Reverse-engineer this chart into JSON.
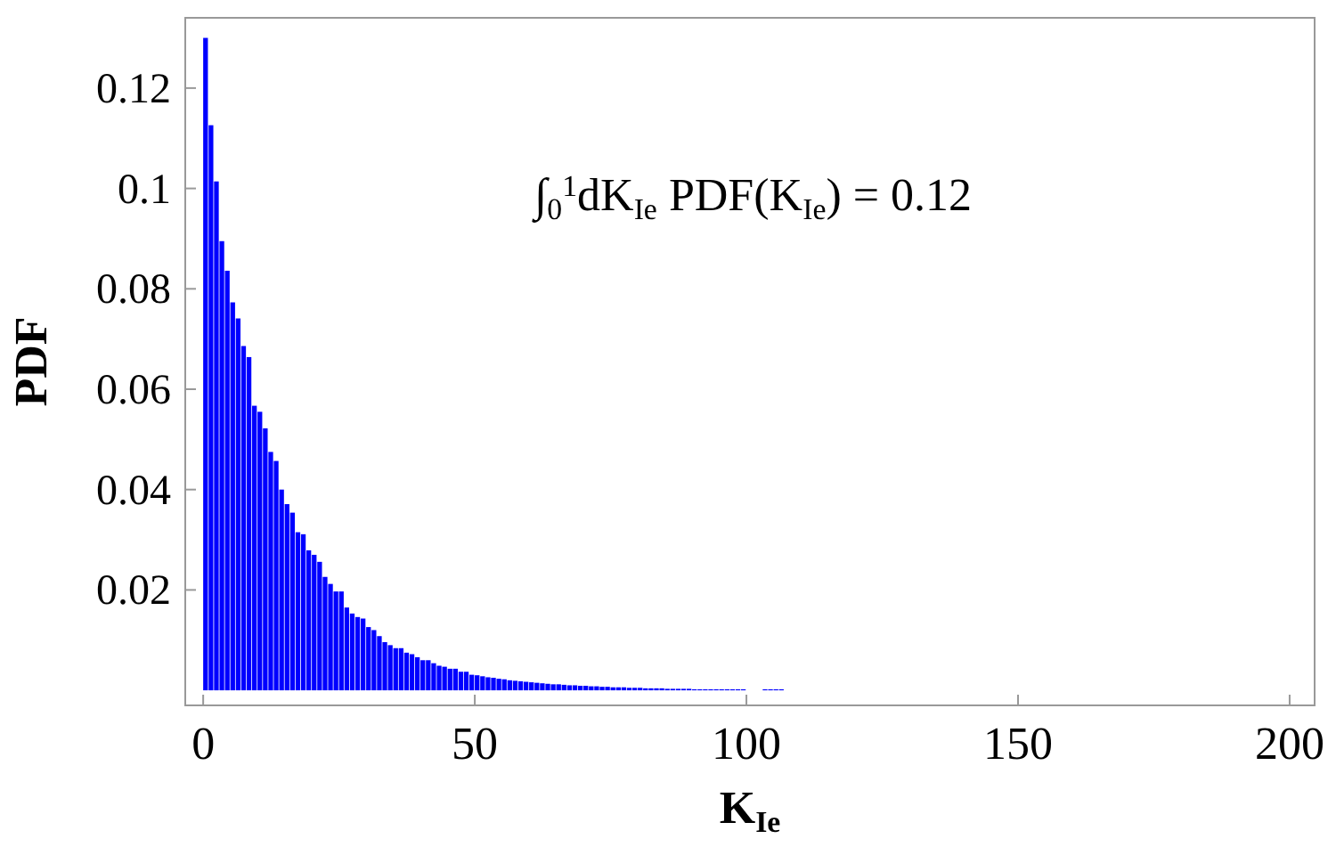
{
  "chart_data": {
    "type": "histogram",
    "xlabel": "K$_{Ie}$",
    "ylabel": "PDF",
    "color": "#0000ff",
    "bins": [
      0,
      1,
      2,
      3,
      4,
      5,
      6,
      7,
      8,
      9,
      10,
      11,
      12,
      13,
      14,
      15,
      16,
      17,
      18,
      19,
      20,
      21,
      22,
      23,
      24,
      25,
      26,
      27,
      28,
      29,
      30,
      31,
      32,
      33,
      34,
      35,
      36,
      37,
      38,
      39,
      40,
      41,
      42,
      43,
      44,
      45,
      46,
      47,
      48,
      49,
      50,
      51,
      52,
      53,
      54,
      55,
      56,
      57,
      58,
      59,
      60,
      61,
      62,
      63,
      64,
      65,
      66,
      67,
      68,
      69,
      70,
      71,
      72,
      73,
      74,
      75,
      76,
      77,
      78,
      79,
      80,
      81,
      82,
      83,
      84,
      85,
      86,
      87,
      88,
      89,
      90,
      91,
      92,
      93,
      94,
      95,
      96,
      97,
      98,
      99,
      100,
      103,
      104,
      105,
      106,
      107
    ],
    "values": [
      0.13,
      0.1126,
      0.1014,
      0.0895,
      0.0836,
      0.0773,
      0.0741,
      0.0686,
      0.0664,
      0.0567,
      0.0555,
      0.0522,
      0.0475,
      0.0457,
      0.04,
      0.0371,
      0.0354,
      0.0315,
      0.0311,
      0.0279,
      0.027,
      0.0256,
      0.0226,
      0.0212,
      0.0197,
      0.0197,
      0.0165,
      0.0153,
      0.0146,
      0.0143,
      0.0126,
      0.012,
      0.0108,
      0.0096,
      0.009,
      0.0084,
      0.0084,
      0.0075,
      0.0072,
      0.0066,
      0.006,
      0.006,
      0.0054,
      0.0049,
      0.0047,
      0.0043,
      0.0043,
      0.0037,
      0.0037,
      0.0031,
      0.003,
      0.0028,
      0.0026,
      0.0025,
      0.0023,
      0.0022,
      0.002,
      0.0019,
      0.0018,
      0.0017,
      0.0016,
      0.0015,
      0.0014,
      0.0013,
      0.0012,
      0.0012,
      0.0011,
      0.001,
      0.001,
      0.0009,
      0.0009,
      0.0008,
      0.0008,
      0.0007,
      0.0007,
      0.0006,
      0.0006,
      0.0006,
      0.0005,
      0.0005,
      0.0005,
      0.0004,
      0.0004,
      0.0004,
      0.0004,
      0.0003,
      0.0003,
      0.0003,
      0.0003,
      0.0003,
      0.0002,
      0.0002,
      0.0002,
      0.0002,
      0.0002,
      0.0002,
      0.0002,
      0.0002,
      0.0002,
      0.0002,
      null,
      0.0002,
      0.0002,
      0.0002,
      0.0002
    ],
    "xlim": [
      -3.3,
      204.6
    ],
    "xticks": [
      0,
      50,
      100,
      150,
      200
    ],
    "ylim": [
      -0.003,
      0.134
    ],
    "yticks": [
      0.02,
      0.04,
      0.06,
      0.08,
      {
        "value": 0.1,
        "label": "0.1"
      },
      0.12
    ],
    "grid": false,
    "annotations": [
      "∫$_{0}$$^{1}$dK$_{Ie}$ PDF(K$_{Ie}$) = 0.12"
    ]
  }
}
